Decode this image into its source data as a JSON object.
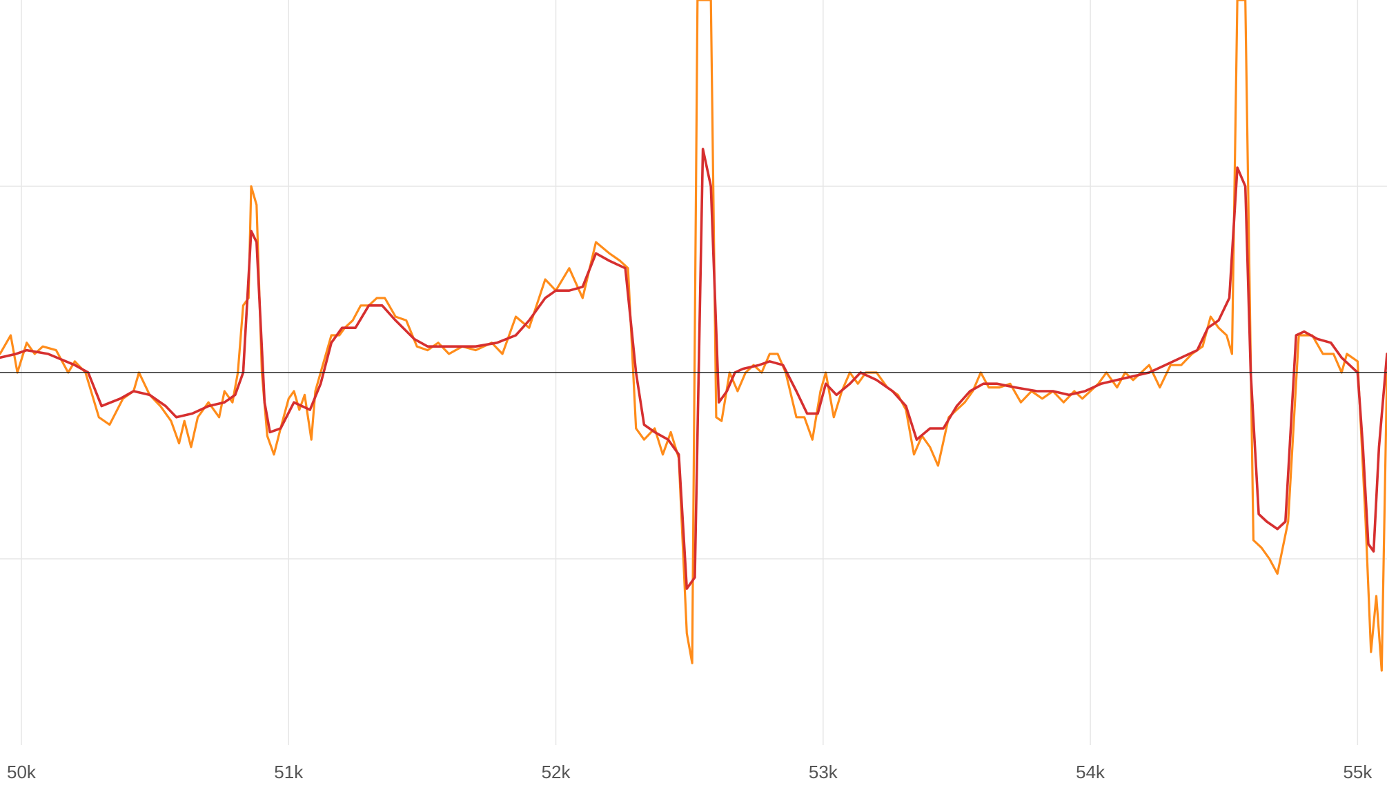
{
  "chart_data": {
    "type": "line",
    "title": "",
    "xlabel": "",
    "ylabel": "",
    "xlim": [
      49920,
      55110
    ],
    "ylim": [
      -1.0,
      1.0
    ],
    "grid": true,
    "legend": "none",
    "x_ticks": [
      50000,
      51000,
      52000,
      53000,
      54000,
      55000
    ],
    "x_tick_labels": [
      "50k",
      "51k",
      "52k",
      "53k",
      "54k",
      "55k"
    ],
    "y_gridlines": [
      -0.5,
      0,
      0.5
    ],
    "zero_line": true,
    "colors": {
      "raw": "#ff8c1a",
      "smoothed": "#d62f2f",
      "grid": "#e6e6e6",
      "zero": "#222222"
    },
    "series": [
      {
        "color": "#ff8c1a",
        "points": [
          [
            49920,
            0.05
          ],
          [
            49960,
            0.1
          ],
          [
            49985,
            0.0
          ],
          [
            50020,
            0.08
          ],
          [
            50050,
            0.05
          ],
          [
            50080,
            0.07
          ],
          [
            50130,
            0.06
          ],
          [
            50175,
            0.0
          ],
          [
            50200,
            0.03
          ],
          [
            50240,
            0.0
          ],
          [
            50290,
            -0.12
          ],
          [
            50330,
            -0.14
          ],
          [
            50380,
            -0.07
          ],
          [
            50420,
            -0.05
          ],
          [
            50440,
            0.0
          ],
          [
            50480,
            -0.06
          ],
          [
            50520,
            -0.09
          ],
          [
            50560,
            -0.13
          ],
          [
            50590,
            -0.19
          ],
          [
            50610,
            -0.13
          ],
          [
            50635,
            -0.2
          ],
          [
            50660,
            -0.12
          ],
          [
            50700,
            -0.08
          ],
          [
            50740,
            -0.12
          ],
          [
            50760,
            -0.05
          ],
          [
            50790,
            -0.08
          ],
          [
            50810,
            0.0
          ],
          [
            50830,
            0.18
          ],
          [
            50850,
            0.2
          ],
          [
            50860,
            0.5
          ],
          [
            50880,
            0.45
          ],
          [
            50900,
            0.0
          ],
          [
            50920,
            -0.17
          ],
          [
            50945,
            -0.22
          ],
          [
            50970,
            -0.15
          ],
          [
            51000,
            -0.07
          ],
          [
            51020,
            -0.05
          ],
          [
            51040,
            -0.1
          ],
          [
            51060,
            -0.06
          ],
          [
            51085,
            -0.18
          ],
          [
            51100,
            -0.05
          ],
          [
            51120,
            0.0
          ],
          [
            51160,
            0.1
          ],
          [
            51190,
            0.1
          ],
          [
            51210,
            0.12
          ],
          [
            51240,
            0.14
          ],
          [
            51270,
            0.18
          ],
          [
            51300,
            0.18
          ],
          [
            51330,
            0.2
          ],
          [
            51360,
            0.2
          ],
          [
            51400,
            0.15
          ],
          [
            51440,
            0.14
          ],
          [
            51480,
            0.07
          ],
          [
            51520,
            0.06
          ],
          [
            51560,
            0.08
          ],
          [
            51600,
            0.05
          ],
          [
            51650,
            0.07
          ],
          [
            51700,
            0.06
          ],
          [
            51760,
            0.08
          ],
          [
            51800,
            0.05
          ],
          [
            51850,
            0.15
          ],
          [
            51900,
            0.12
          ],
          [
            51960,
            0.25
          ],
          [
            52000,
            0.22
          ],
          [
            52050,
            0.28
          ],
          [
            52100,
            0.2
          ],
          [
            52150,
            0.35
          ],
          [
            52200,
            0.32
          ],
          [
            52240,
            0.3
          ],
          [
            52270,
            0.28
          ],
          [
            52300,
            -0.15
          ],
          [
            52330,
            -0.18
          ],
          [
            52370,
            -0.15
          ],
          [
            52400,
            -0.22
          ],
          [
            52430,
            -0.16
          ],
          [
            52460,
            -0.23
          ],
          [
            52490,
            -0.7
          ],
          [
            52510,
            -0.78
          ],
          [
            52530,
            1.0
          ],
          [
            52580,
            1.0
          ],
          [
            52600,
            -0.12
          ],
          [
            52620,
            -0.13
          ],
          [
            52650,
            0.0
          ],
          [
            52680,
            -0.05
          ],
          [
            52710,
            0.0
          ],
          [
            52740,
            0.02
          ],
          [
            52770,
            0.0
          ],
          [
            52800,
            0.05
          ],
          [
            52830,
            0.05
          ],
          [
            52860,
            0.0
          ],
          [
            52900,
            -0.12
          ],
          [
            52930,
            -0.12
          ],
          [
            52960,
            -0.18
          ],
          [
            52990,
            -0.05
          ],
          [
            53010,
            0.0
          ],
          [
            53040,
            -0.12
          ],
          [
            53070,
            -0.05
          ],
          [
            53100,
            0.0
          ],
          [
            53130,
            -0.03
          ],
          [
            53160,
            0.0
          ],
          [
            53200,
            0.0
          ],
          [
            53240,
            -0.04
          ],
          [
            53280,
            -0.06
          ],
          [
            53310,
            -0.1
          ],
          [
            53340,
            -0.22
          ],
          [
            53370,
            -0.17
          ],
          [
            53400,
            -0.2
          ],
          [
            53430,
            -0.25
          ],
          [
            53470,
            -0.12
          ],
          [
            53500,
            -0.1
          ],
          [
            53530,
            -0.08
          ],
          [
            53560,
            -0.05
          ],
          [
            53590,
            0.0
          ],
          [
            53620,
            -0.04
          ],
          [
            53660,
            -0.04
          ],
          [
            53700,
            -0.03
          ],
          [
            53740,
            -0.08
          ],
          [
            53780,
            -0.05
          ],
          [
            53820,
            -0.07
          ],
          [
            53860,
            -0.05
          ],
          [
            53900,
            -0.08
          ],
          [
            53940,
            -0.05
          ],
          [
            53970,
            -0.07
          ],
          [
            54000,
            -0.05
          ],
          [
            54030,
            -0.03
          ],
          [
            54060,
            0.0
          ],
          [
            54100,
            -0.04
          ],
          [
            54130,
            0.0
          ],
          [
            54160,
            -0.02
          ],
          [
            54190,
            0.0
          ],
          [
            54220,
            0.02
          ],
          [
            54260,
            -0.04
          ],
          [
            54300,
            0.02
          ],
          [
            54340,
            0.02
          ],
          [
            54380,
            0.05
          ],
          [
            54420,
            0.07
          ],
          [
            54450,
            0.15
          ],
          [
            54480,
            0.12
          ],
          [
            54510,
            0.1
          ],
          [
            54530,
            0.05
          ],
          [
            54550,
            1.0
          ],
          [
            54580,
            1.0
          ],
          [
            54610,
            -0.45
          ],
          [
            54640,
            -0.47
          ],
          [
            54670,
            -0.5
          ],
          [
            54700,
            -0.54
          ],
          [
            54740,
            -0.4
          ],
          [
            54780,
            0.1
          ],
          [
            54800,
            0.1
          ],
          [
            54830,
            0.1
          ],
          [
            54870,
            0.05
          ],
          [
            54910,
            0.05
          ],
          [
            54940,
            0.0
          ],
          [
            54960,
            0.05
          ],
          [
            55000,
            0.03
          ],
          [
            55030,
            -0.4
          ],
          [
            55050,
            -0.75
          ],
          [
            55070,
            -0.6
          ],
          [
            55090,
            -0.8
          ],
          [
            55110,
            0.0
          ]
        ]
      },
      {
        "color": "#d62f2f",
        "points": [
          [
            49920,
            0.04
          ],
          [
            49980,
            0.05
          ],
          [
            50020,
            0.06
          ],
          [
            50100,
            0.05
          ],
          [
            50200,
            0.02
          ],
          [
            50250,
            0.0
          ],
          [
            50300,
            -0.09
          ],
          [
            50370,
            -0.07
          ],
          [
            50420,
            -0.05
          ],
          [
            50480,
            -0.06
          ],
          [
            50540,
            -0.09
          ],
          [
            50580,
            -0.12
          ],
          [
            50640,
            -0.11
          ],
          [
            50700,
            -0.09
          ],
          [
            50760,
            -0.08
          ],
          [
            50800,
            -0.06
          ],
          [
            50830,
            0.0
          ],
          [
            50860,
            0.38
          ],
          [
            50880,
            0.35
          ],
          [
            50910,
            -0.08
          ],
          [
            50930,
            -0.16
          ],
          [
            50970,
            -0.15
          ],
          [
            51020,
            -0.08
          ],
          [
            51080,
            -0.1
          ],
          [
            51120,
            -0.03
          ],
          [
            51160,
            0.08
          ],
          [
            51200,
            0.12
          ],
          [
            51250,
            0.12
          ],
          [
            51300,
            0.18
          ],
          [
            51350,
            0.18
          ],
          [
            51400,
            0.14
          ],
          [
            51470,
            0.09
          ],
          [
            51520,
            0.07
          ],
          [
            51600,
            0.07
          ],
          [
            51700,
            0.07
          ],
          [
            51780,
            0.08
          ],
          [
            51850,
            0.1
          ],
          [
            51900,
            0.14
          ],
          [
            51960,
            0.2
          ],
          [
            52000,
            0.22
          ],
          [
            52050,
            0.22
          ],
          [
            52100,
            0.23
          ],
          [
            52150,
            0.32
          ],
          [
            52200,
            0.3
          ],
          [
            52260,
            0.28
          ],
          [
            52300,
            0.0
          ],
          [
            52330,
            -0.14
          ],
          [
            52370,
            -0.16
          ],
          [
            52420,
            -0.18
          ],
          [
            52460,
            -0.22
          ],
          [
            52490,
            -0.58
          ],
          [
            52520,
            -0.55
          ],
          [
            52550,
            0.6
          ],
          [
            52580,
            0.5
          ],
          [
            52610,
            -0.08
          ],
          [
            52640,
            -0.05
          ],
          [
            52670,
            0.0
          ],
          [
            52700,
            0.01
          ],
          [
            52760,
            0.02
          ],
          [
            52800,
            0.03
          ],
          [
            52850,
            0.02
          ],
          [
            52900,
            -0.05
          ],
          [
            52940,
            -0.11
          ],
          [
            52980,
            -0.11
          ],
          [
            53010,
            -0.03
          ],
          [
            53050,
            -0.06
          ],
          [
            53100,
            -0.03
          ],
          [
            53140,
            0.0
          ],
          [
            53200,
            -0.02
          ],
          [
            53260,
            -0.05
          ],
          [
            53310,
            -0.09
          ],
          [
            53350,
            -0.18
          ],
          [
            53400,
            -0.15
          ],
          [
            53450,
            -0.15
          ],
          [
            53500,
            -0.09
          ],
          [
            53550,
            -0.05
          ],
          [
            53600,
            -0.03
          ],
          [
            53650,
            -0.03
          ],
          [
            53720,
            -0.04
          ],
          [
            53800,
            -0.05
          ],
          [
            53860,
            -0.05
          ],
          [
            53920,
            -0.06
          ],
          [
            53980,
            -0.05
          ],
          [
            54040,
            -0.03
          ],
          [
            54100,
            -0.02
          ],
          [
            54160,
            -0.01
          ],
          [
            54220,
            0.0
          ],
          [
            54280,
            0.02
          ],
          [
            54340,
            0.04
          ],
          [
            54400,
            0.06
          ],
          [
            54440,
            0.12
          ],
          [
            54480,
            0.14
          ],
          [
            54520,
            0.2
          ],
          [
            54550,
            0.55
          ],
          [
            54580,
            0.5
          ],
          [
            54600,
            0.0
          ],
          [
            54630,
            -0.38
          ],
          [
            54660,
            -0.4
          ],
          [
            54700,
            -0.42
          ],
          [
            54730,
            -0.4
          ],
          [
            54770,
            0.1
          ],
          [
            54800,
            0.11
          ],
          [
            54850,
            0.09
          ],
          [
            54900,
            0.08
          ],
          [
            54940,
            0.04
          ],
          [
            54970,
            0.02
          ],
          [
            55000,
            0.0
          ],
          [
            55020,
            -0.2
          ],
          [
            55040,
            -0.46
          ],
          [
            55060,
            -0.48
          ],
          [
            55080,
            -0.2
          ],
          [
            55110,
            0.05
          ]
        ]
      }
    ]
  }
}
